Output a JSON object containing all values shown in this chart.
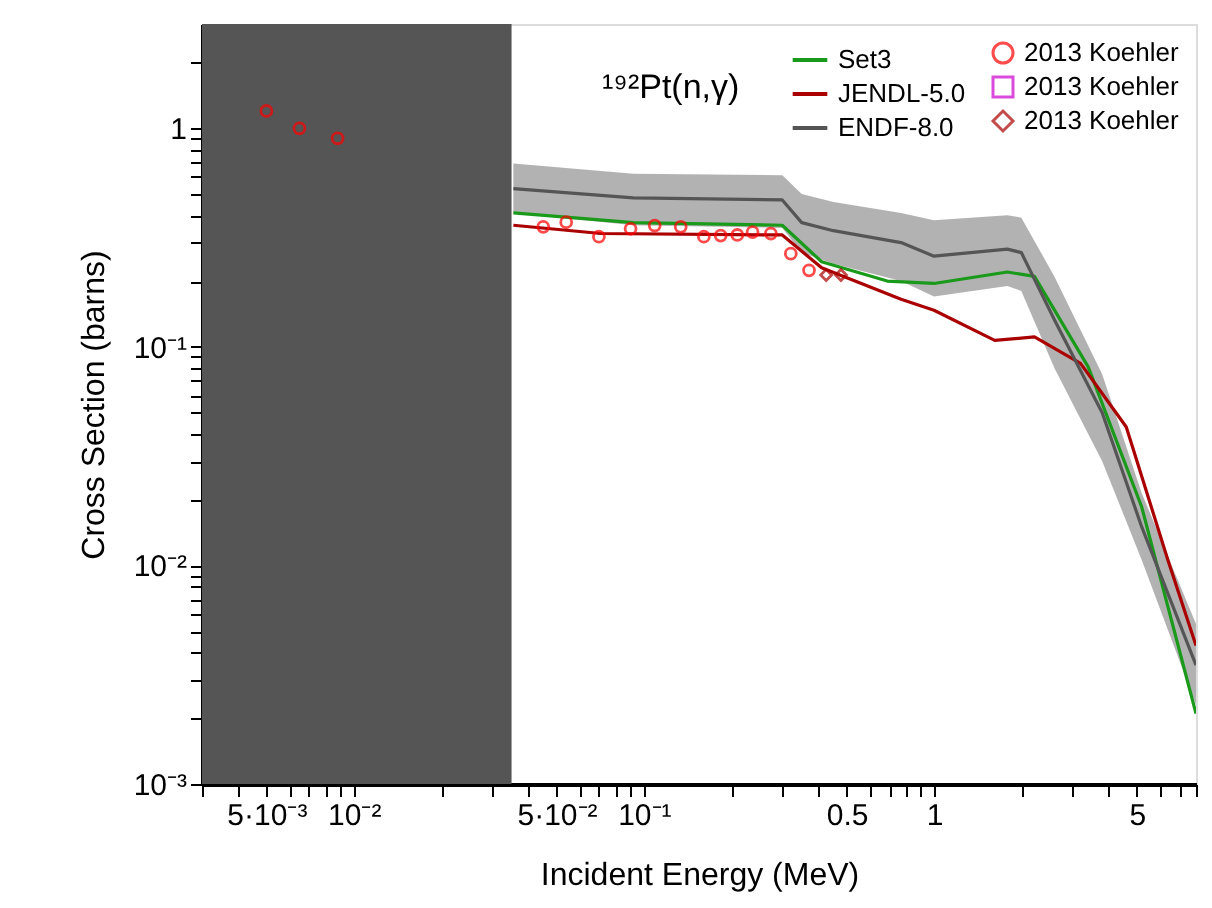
{
  "chart_data": {
    "type": "line",
    "title": "¹⁹²Pt(n,γ)",
    "xlabel": "Incident Energy (MeV)",
    "ylabel": "Cross Section (barns)",
    "log": "xy",
    "grid": false,
    "legend": "top right",
    "xlim": [
      0.003,
      8
    ],
    "ylim": [
      0.001,
      3
    ],
    "xticks": [
      {
        "value": 0.003,
        "label": null
      },
      {
        "value": 0.004,
        "label": null
      },
      {
        "value": 0.005,
        "label": "5·10⁻³"
      },
      {
        "value": 0.006,
        "label": null
      },
      {
        "value": 0.007,
        "label": null
      },
      {
        "value": 0.008,
        "label": null
      },
      {
        "value": 0.009,
        "label": null
      },
      {
        "value": 0.01,
        "label": "10⁻²"
      },
      {
        "value": 0.02,
        "label": null
      },
      {
        "value": 0.03,
        "label": null
      },
      {
        "value": 0.04,
        "label": null
      },
      {
        "value": 0.05,
        "label": "5·10⁻²"
      },
      {
        "value": 0.06,
        "label": null
      },
      {
        "value": 0.07,
        "label": null
      },
      {
        "value": 0.08,
        "label": null
      },
      {
        "value": 0.09,
        "label": null
      },
      {
        "value": 0.1,
        "label": "10⁻¹"
      },
      {
        "value": 0.2,
        "label": null
      },
      {
        "value": 0.3,
        "label": null
      },
      {
        "value": 0.4,
        "label": null
      },
      {
        "value": 0.5,
        "label": "0.5"
      },
      {
        "value": 0.6,
        "label": null
      },
      {
        "value": 0.7,
        "label": null
      },
      {
        "value": 0.8,
        "label": null
      },
      {
        "value": 0.9,
        "label": null
      },
      {
        "value": 1,
        "label": "1"
      },
      {
        "value": 2,
        "label": null
      },
      {
        "value": 3,
        "label": null
      },
      {
        "value": 4,
        "label": null
      },
      {
        "value": 5,
        "label": "5"
      },
      {
        "value": 6,
        "label": null
      },
      {
        "value": 7,
        "label": null
      },
      {
        "value": 8,
        "label": null
      }
    ],
    "yticks": [
      {
        "value": 0.001,
        "label": "10⁻³"
      },
      {
        "value": 0.002,
        "label": null
      },
      {
        "value": 0.003,
        "label": null
      },
      {
        "value": 0.004,
        "label": null
      },
      {
        "value": 0.005,
        "label": null
      },
      {
        "value": 0.006,
        "label": null
      },
      {
        "value": 0.007,
        "label": null
      },
      {
        "value": 0.008,
        "label": null
      },
      {
        "value": 0.009,
        "label": null
      },
      {
        "value": 0.01,
        "label": "10⁻²"
      },
      {
        "value": 0.02,
        "label": null
      },
      {
        "value": 0.03,
        "label": null
      },
      {
        "value": 0.04,
        "label": null
      },
      {
        "value": 0.05,
        "label": null
      },
      {
        "value": 0.06,
        "label": null
      },
      {
        "value": 0.07,
        "label": null
      },
      {
        "value": 0.08,
        "label": null
      },
      {
        "value": 0.09,
        "label": null
      },
      {
        "value": 0.1,
        "label": "10⁻¹"
      },
      {
        "value": 0.2,
        "label": null
      },
      {
        "value": 0.3,
        "label": null
      },
      {
        "value": 0.4,
        "label": null
      },
      {
        "value": 0.5,
        "label": null
      },
      {
        "value": 0.6,
        "label": null
      },
      {
        "value": 0.7,
        "label": null
      },
      {
        "value": 0.8,
        "label": null
      },
      {
        "value": 0.9,
        "label": null
      },
      {
        "value": 1,
        "label": "1"
      },
      {
        "value": 2,
        "label": null
      }
    ],
    "bands": [
      {
        "axis": "x",
        "from": 0.003,
        "to": 0.035,
        "color": "#555555"
      }
    ],
    "series": [
      {
        "name": "Set3",
        "type": "line",
        "color": "#1a9a1a",
        "x": [
          0.0355,
          0.092,
          0.3,
          0.41,
          0.69,
          1.0,
          1.79,
          2.22,
          3.4,
          5.2,
          8.0
        ],
        "values": [
          0.41,
          0.37,
          0.36,
          0.245,
          0.2,
          0.195,
          0.22,
          0.21,
          0.081,
          0.0185,
          0.0021
        ]
      },
      {
        "name": "JENDL-5.0",
        "type": "line",
        "color": "#aa0000",
        "x": [
          0.0355,
          0.071,
          0.3,
          0.41,
          0.77,
          1.0,
          1.62,
          2.22,
          3.2,
          4.6,
          6.4,
          8.0
        ],
        "values": [
          0.36,
          0.33,
          0.325,
          0.23,
          0.165,
          0.147,
          0.107,
          0.111,
          0.084,
          0.043,
          0.0106,
          0.0043
        ]
      },
      {
        "name": "ENDF-8.0",
        "type": "line",
        "color": "#555555",
        "x": [
          0.0355,
          0.092,
          0.3,
          0.35,
          0.45,
          0.77,
          1.0,
          1.79,
          2.0,
          2.6,
          3.8,
          5.2,
          8.0
        ],
        "values": [
          0.53,
          0.48,
          0.47,
          0.37,
          0.34,
          0.3,
          0.26,
          0.28,
          0.27,
          0.133,
          0.05,
          0.015,
          0.0035
        ],
        "lower": [
          0.41,
          0.36,
          0.35,
          0.27,
          0.24,
          0.2,
          0.17,
          0.19,
          0.18,
          0.08,
          0.03,
          0.0106,
          0.0023
        ],
        "upper": [
          0.69,
          0.62,
          0.61,
          0.5,
          0.46,
          0.41,
          0.38,
          0.4,
          0.39,
          0.21,
          0.075,
          0.0214,
          0.0054
        ]
      },
      {
        "name": "2013 Koehler",
        "type": "scatter",
        "marker": "circle",
        "color": "#ff0000",
        "x": [
          0.005,
          0.0065,
          0.0088,
          0.045,
          0.054,
          0.07,
          0.09,
          0.109,
          0.134,
          0.161,
          0.184,
          0.21,
          0.237,
          0.274,
          0.321,
          0.371
        ],
        "values": [
          1.2,
          1.0,
          0.9,
          0.354,
          0.372,
          0.319,
          0.347,
          0.359,
          0.354,
          0.319,
          0.323,
          0.325,
          0.335,
          0.33,
          0.267,
          0.224
        ]
      },
      {
        "name": "2013 Koehler",
        "type": "scatter",
        "marker": "square",
        "color": "#cc00cc"
      },
      {
        "name": "2013 Koehler",
        "type": "scatter",
        "marker": "diamond",
        "color": "#aa0000",
        "x": [
          0.425,
          0.478
        ],
        "values": [
          0.213,
          0.213
        ]
      }
    ]
  }
}
